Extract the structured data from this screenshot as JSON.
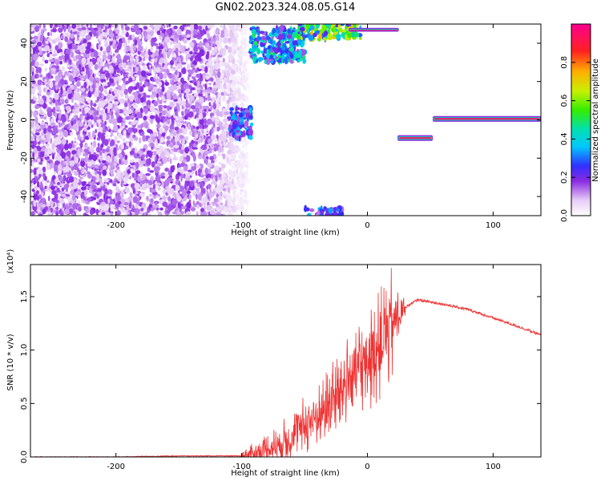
{
  "title": "GN02.2023.324.08.05.G14",
  "chart_data": [
    {
      "type": "heatmap",
      "title": "GN02.2023.324.08.05.G14",
      "xlabel": "Height of straight line (km)",
      "ylabel": "Frequency (Hz)",
      "xlim": [
        -268,
        138
      ],
      "ylim": [
        -50,
        50
      ],
      "xticks": [
        -200,
        -100,
        0,
        100
      ],
      "xtick_labels": [
        "-200",
        "-100",
        "0",
        "100"
      ],
      "yticks": [
        -40,
        -20,
        0,
        20,
        40
      ],
      "ytick_labels": [
        "-40",
        "-20",
        "0",
        "20",
        "40"
      ],
      "colorbar": {
        "label": "Normalized spectral amplitude",
        "range": [
          0,
          1
        ],
        "ticks": [
          0.0,
          0.2,
          0.4,
          0.6,
          0.8
        ],
        "tick_labels": [
          "0.0",
          "0.2",
          "0.4",
          "0.6",
          "0.8"
        ],
        "colormap": "rainbow (white-violet-blue-cyan-green-yellow-red-magenta)"
      },
      "features": [
        {
          "desc": "diffuse low-amplitude noise",
          "x_range": [
            -268,
            -95
          ],
          "freq_range": [
            -50,
            50
          ],
          "amplitude": 0.15
        },
        {
          "desc": "blob",
          "x_range": [
            -110,
            -92
          ],
          "freq_range": [
            -10,
            6
          ],
          "amplitude": 0.3
        },
        {
          "desc": "band",
          "x_range": [
            -93,
            -50
          ],
          "freq_range": [
            30,
            48
          ],
          "amplitude": 0.4
        },
        {
          "desc": "band",
          "x_range": [
            -55,
            -5
          ],
          "freq_range": [
            42,
            50
          ],
          "amplitude": 0.6
        },
        {
          "desc": "strong line",
          "x_range": [
            -15,
            25
          ],
          "freq_range": [
            46,
            48
          ],
          "amplitude": 0.95
        },
        {
          "desc": "band bottom",
          "x_range": [
            -50,
            -20
          ],
          "freq_range": [
            -50,
            -46
          ],
          "amplitude": 0.3
        },
        {
          "desc": "strong line",
          "x_range": [
            24,
            52
          ],
          "freq_range": [
            -11,
            -8
          ],
          "amplitude": 0.95
        },
        {
          "desc": "strong line",
          "x_range": [
            52,
            138
          ],
          "freq_range": [
            -1,
            2
          ],
          "amplitude": 0.95
        }
      ]
    },
    {
      "type": "line",
      "xlabel": "Height of straight line (km)",
      "ylabel": "SNR (10 * v/v)",
      "y_multiplier": "(x10⁴)",
      "xlim": [
        -268,
        138
      ],
      "ylim": [
        0,
        1.8
      ],
      "xticks": [
        -200,
        -100,
        0,
        100
      ],
      "xtick_labels": [
        "-200",
        "-100",
        "0",
        "100"
      ],
      "yticks": [
        0.0,
        0.5,
        1.0,
        1.5
      ],
      "ytick_labels": [
        "0.0",
        "0.5",
        "1.0",
        "1.5"
      ],
      "grid": false,
      "series": [
        {
          "color": "#ee3333",
          "x": [
            -268,
            -200,
            -150,
            -100,
            -90,
            -80,
            -70,
            -60,
            -50,
            -40,
            -30,
            -20,
            -10,
            0,
            10,
            20,
            30,
            40,
            60,
            80,
            100,
            120,
            138
          ],
          "y": [
            0.0,
            0.0,
            0.01,
            0.01,
            0.03,
            0.07,
            0.12,
            0.2,
            0.3,
            0.38,
            0.5,
            0.65,
            0.8,
            0.9,
            1.05,
            1.25,
            1.4,
            1.47,
            1.43,
            1.38,
            1.3,
            1.22,
            1.14
          ]
        }
      ]
    }
  ]
}
